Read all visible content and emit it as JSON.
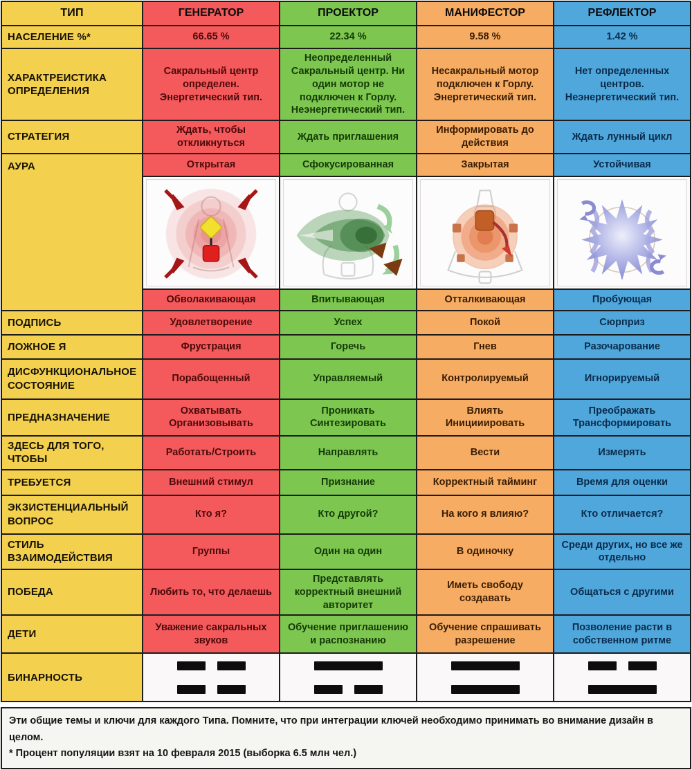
{
  "palette": {
    "type_column": "#F3D04E",
    "generator": "#F4595B",
    "projector": "#7DC750",
    "manifestor": "#F6AC62",
    "reflector": "#4FA7DB",
    "border": "#1c1c1c"
  },
  "header": {
    "type_label": "ТИП",
    "columns": [
      "ГЕНЕРАТОР",
      "ПРОЕКТОР",
      "МАНИФЕСТОР",
      "РЕФЛЕКТОР"
    ]
  },
  "rows_top": [
    {
      "label": "НАСЕЛЕНИЕ %*",
      "cells": [
        "66.65 %",
        "22.34 %",
        "9.58 %",
        "1.42 %"
      ]
    },
    {
      "label": "ХАРАКТРЕИСТИКА ОПРЕДЕЛЕНИЯ",
      "cells": [
        "Сакральный центр определен. Энергетический тип.",
        "Неопределенный Сакральный центр. Ни один мотор не подключен к Горлу. Неэнергетический тип.",
        "Несакральный мотор подключен к Горлу. Энергетический тип.",
        "Нет определенных центров. Неэнергетический тип."
      ]
    },
    {
      "label": "СТРАТЕГИЯ",
      "cells": [
        "Ждать, чтобы откликнуться",
        "Ждать приглашения",
        "Информировать до действия",
        "Ждать лунный цикл"
      ]
    }
  ],
  "aura": {
    "label": "АУРА",
    "types": [
      "Открытая",
      "Сфокусированная",
      "Закрытая",
      "Устойчивая"
    ],
    "qualities": [
      "Обволакивающая",
      "Впитывающая",
      "Отталкивающая",
      "Пробующая"
    ],
    "icons": {
      "generator": "red-concentric-open-aura-with-inward-arrows",
      "projector": "green-focused-funnel-aura",
      "manifestor": "orange-closed-dense-aura",
      "reflector": "blue-star-sampling-aura"
    }
  },
  "rows_bottom": [
    {
      "label": "ПОДПИСЬ",
      "cells": [
        "Удовлетворение",
        "Успех",
        "Покой",
        "Сюрприз"
      ]
    },
    {
      "label": "ЛОЖНОЕ Я",
      "cells": [
        "Фрустрация",
        "Горечь",
        "Гнев",
        "Разочарование"
      ]
    },
    {
      "label": "ДИСФУНКЦИОНАЛЬНОЕ СОСТОЯНИЕ",
      "cells": [
        "Порабощенный",
        "Управляемый",
        "Контролируемый",
        "Игнорируемый"
      ]
    },
    {
      "label": "ПРЕДНАЗНАЧЕНИЕ",
      "cells": [
        "Охватывать\nОрганизовывать",
        "Проникать\nСинтезировать",
        "Влиять\nИницииировать",
        "Преображать\nТрансформировать"
      ]
    },
    {
      "label": "ЗДЕСЬ ДЛЯ ТОГО, ЧТОБЫ",
      "cells": [
        "Работать/Строить",
        "Направлять",
        "Вести",
        "Измерять"
      ]
    },
    {
      "label": "ТРЕБУЕТСЯ",
      "cells": [
        "Внешний стимул",
        "Признание",
        "Корректный тайминг",
        "Время для оценки"
      ]
    },
    {
      "label": "ЭКЗИСТЕНЦИАЛЬНЫЙ ВОПРОС",
      "cells": [
        "Кто я?",
        "Кто другой?",
        "На кого я влияю?",
        "Кто отличается?"
      ]
    },
    {
      "label": "СТИЛЬ ВЗАИМОДЕЙСТВИЯ",
      "cells": [
        "Группы",
        "Один на один",
        "В одиночку",
        "Среди других, но все же отдельно"
      ]
    },
    {
      "label": "ПОБЕДА",
      "cells": [
        "Любить то, что делаешь",
        "Представлять корректный внешний авторитет",
        "Иметь свободу создавать",
        "Общаться с другими"
      ]
    },
    {
      "label": "ДЕТИ",
      "cells": [
        "Уважение сакральных звуков",
        "Обучение приглашению и распознанию",
        "Обучение спрашивать разрешение",
        "Позволение расти в собственном ритме"
      ]
    }
  ],
  "binary": {
    "label": "БИНАРНОСТЬ",
    "patterns": [
      [
        "broken",
        "broken"
      ],
      [
        "solid",
        "broken"
      ],
      [
        "solid",
        "solid"
      ],
      [
        "broken",
        "solid"
      ]
    ]
  },
  "footer": {
    "line1": "Эти общие темы и ключи для каждого Типа. Помните, что при интеграции ключей необходимо принимать во внимание дизайн в целом.",
    "line2": "* Процент популяции взят на 10 февраля 2015 (выборка 6.5 млн чел.)"
  }
}
